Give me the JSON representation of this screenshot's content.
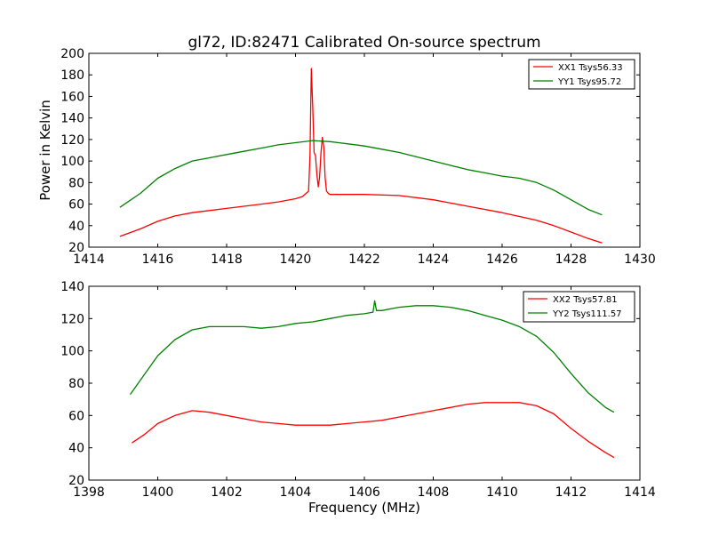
{
  "chart_data": [
    {
      "type": "line",
      "title": "gl72, ID:82471 Calibrated On-source spectrum",
      "xlabel": "",
      "ylabel": "Power in Kelvin",
      "xlim": [
        1414,
        1430
      ],
      "ylim": [
        20,
        200
      ],
      "xticks": [
        1414,
        1416,
        1418,
        1420,
        1422,
        1424,
        1426,
        1428,
        1430
      ],
      "yticks": [
        20,
        40,
        60,
        80,
        100,
        120,
        140,
        160,
        180,
        200
      ],
      "grid": false,
      "legend": "top-right",
      "series": [
        {
          "name": "XX1 Tsys56.33",
          "color": "#ff0000",
          "x": [
            1414.9,
            1415.5,
            1416,
            1416.5,
            1417,
            1417.5,
            1418,
            1418.5,
            1419,
            1419.5,
            1420,
            1420.2,
            1420.38,
            1420.42,
            1420.46,
            1420.5,
            1420.54,
            1420.58,
            1420.62,
            1420.66,
            1420.7,
            1420.74,
            1420.78,
            1420.82,
            1420.86,
            1420.9,
            1420.95,
            1421,
            1421.2,
            1422,
            1423,
            1424,
            1425,
            1426,
            1427,
            1427.5,
            1428,
            1428.5,
            1428.9
          ],
          "y": [
            30,
            37,
            44,
            49,
            52,
            54,
            56,
            58,
            60,
            62,
            65,
            67,
            72,
            105,
            186,
            150,
            108,
            105,
            88,
            76,
            85,
            108,
            122,
            113,
            85,
            72,
            70,
            69,
            69,
            69,
            68,
            64,
            58,
            52,
            45,
            40,
            34,
            28,
            24
          ]
        },
        {
          "name": "YY1 Tsys95.72",
          "color": "#008000",
          "x": [
            1414.9,
            1415.5,
            1416,
            1416.5,
            1417,
            1417.5,
            1418,
            1418.5,
            1419,
            1419.5,
            1420,
            1420.5,
            1421,
            1421.5,
            1422,
            1422.5,
            1423,
            1423.5,
            1424,
            1424.5,
            1425,
            1425.5,
            1426,
            1426.5,
            1427,
            1427.5,
            1428,
            1428.5,
            1428.9
          ],
          "y": [
            57,
            70,
            84,
            93,
            100,
            103,
            106,
            109,
            112,
            115,
            117,
            119,
            118,
            116,
            114,
            111,
            108,
            104,
            100,
            96,
            92,
            89,
            86,
            84,
            80,
            73,
            64,
            55,
            50
          ]
        }
      ]
    },
    {
      "type": "line",
      "title": "",
      "xlabel": "Frequency (MHz)",
      "ylabel": "",
      "xlim": [
        1398,
        1414
      ],
      "ylim": [
        20,
        140
      ],
      "xticks": [
        1398,
        1400,
        1402,
        1404,
        1406,
        1408,
        1410,
        1412,
        1414
      ],
      "yticks": [
        20,
        40,
        60,
        80,
        100,
        120,
        140
      ],
      "grid": false,
      "legend": "top-right",
      "series": [
        {
          "name": "XX2 Tsys57.81",
          "color": "#ff0000",
          "x": [
            1399.25,
            1399.6,
            1400,
            1400.5,
            1401,
            1401.5,
            1402,
            1402.5,
            1403,
            1403.5,
            1404,
            1404.5,
            1405,
            1405.5,
            1406,
            1406.5,
            1407,
            1407.5,
            1408,
            1408.5,
            1409,
            1409.5,
            1410,
            1410.5,
            1411,
            1411.5,
            1412,
            1412.5,
            1413,
            1413.25
          ],
          "y": [
            43,
            48,
            55,
            60,
            63,
            62,
            60,
            58,
            56,
            55,
            54,
            54,
            54,
            55,
            56,
            57,
            59,
            61,
            63,
            65,
            67,
            68,
            68,
            68,
            66,
            61,
            52,
            44,
            37,
            34
          ]
        },
        {
          "name": "YY2 Tsys111.57",
          "color": "#008000",
          "x": [
            1399.2,
            1399.5,
            1400,
            1400.5,
            1401,
            1401.5,
            1402,
            1402.5,
            1403,
            1403.5,
            1404,
            1404.5,
            1405,
            1405.5,
            1406,
            1406.25,
            1406.3,
            1406.35,
            1406.5,
            1407,
            1407.5,
            1408,
            1408.5,
            1409,
            1409.5,
            1410,
            1410.5,
            1411,
            1411.5,
            1412,
            1412.5,
            1413,
            1413.25
          ],
          "y": [
            73,
            82,
            97,
            107,
            113,
            115,
            115,
            115,
            114,
            115,
            117,
            118,
            120,
            122,
            123,
            124,
            131,
            125,
            125,
            127,
            128,
            128,
            127,
            125,
            122,
            119,
            115,
            109,
            99,
            86,
            74,
            65,
            62
          ]
        }
      ]
    }
  ]
}
